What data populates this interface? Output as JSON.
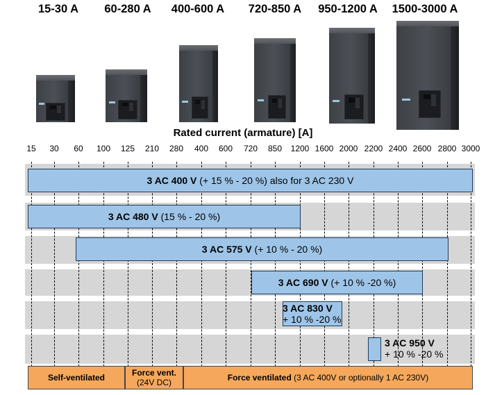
{
  "ranges": [
    "15-30 A",
    "60-280 A",
    "400-600 A",
    "720-850 A",
    "950-1200 A",
    "1500-3000 A"
  ],
  "axis_title": "Rated current (armature) [A]",
  "ticks": [
    "15",
    "30",
    "60",
    "100",
    "125",
    "210",
    "280",
    "400",
    "600",
    "720",
    "850",
    "1200",
    "1600",
    "2000",
    "2200",
    "2400",
    "2600",
    "2800",
    "3000"
  ],
  "voltage_bars": [
    {
      "bold": "3 AC 400 V",
      "rest": " (+ 15 % - 20 %) also for 3 AC 230 V"
    },
    {
      "bold": "3 AC 480 V",
      "rest": " (15 % - 20 %)"
    },
    {
      "bold": "3 AC 575 V",
      "rest": " (+ 10 % - 20 %)"
    },
    {
      "bold": "3 AC 690 V",
      "rest": " (+ 10 % -20 %)"
    },
    {
      "bold": "3 AC 830 V",
      "rest": "+ 10 % -20 %"
    },
    {
      "bold": "3 AC 950 V",
      "rest": "+ 10 % -20 %"
    }
  ],
  "cooling": {
    "self": "Self-ventilated",
    "force_dc_line1": "Force vent.",
    "force_dc_line2": "(24V DC)",
    "force_bold": "Force ventilated",
    "force_rest": " (3 AC 400V or optionally 1 AC 230V)"
  }
}
